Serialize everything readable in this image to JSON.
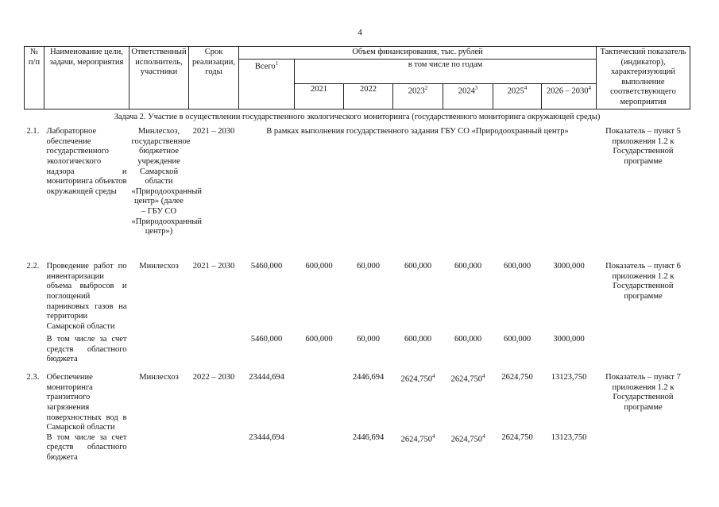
{
  "page_number": "4",
  "header": {
    "num": "№ п/п",
    "name": "Наименование цели, задачи, мероприятия",
    "executor": "Ответственный исполнитель, участники",
    "period": "Срок реализации, годы",
    "funding": "Объем финансирования, тыс. рублей",
    "total": {
      "label": "Всего",
      "note": "1"
    },
    "by_years": "в том числе по годам",
    "years": [
      {
        "label": "2021"
      },
      {
        "label": "2022"
      },
      {
        "label": "2023",
        "note": "2"
      },
      {
        "label": "2024",
        "note": "3"
      },
      {
        "label": "2025",
        "note": "4"
      },
      {
        "label": "2026 – 2030",
        "note": "4"
      }
    ],
    "indicator": "Тактический показатель (индикатор), характеризующий выполнение соответствующего мероприятия"
  },
  "task": "Задача 2. Участие в осуществлении государственного экологического мониторинга (государственного мониторинга окружающей среды)",
  "rows": [
    {
      "num": "2.1.",
      "name": "Лабораторное обеспечение государственного экологического надзора и мониторинга объектов окружающей среды",
      "executor": "Минлесхоз, государственное бюджетное учреждение Самарской области «Природоохранный центр» (далее – ГБУ СО «Природоохранный центр»)",
      "period": "2021 – 2030",
      "note": "В рамках выполнения государственного задания ГБУ СО «Природоохранный центр»",
      "indicator": "Показатель – пункт 5 приложения 1.2 к Государственной программе"
    },
    {
      "num": "2.2.",
      "name": "Проведение работ по инвентаризации объема выбросов и поглощений парниковых газов на территории Самарской области",
      "executor": "Минлесхоз",
      "period": "2021 – 2030",
      "cells": [
        {
          "value": "5460,000"
        },
        {
          "value": "600,000"
        },
        {
          "value": "60,000"
        },
        {
          "value": "600,000"
        },
        {
          "value": "600,000"
        },
        {
          "value": "600,000"
        },
        {
          "value": "3000,000"
        }
      ],
      "indicator": "Показатель – пункт 6 приложения 1.2 к Государственной программе"
    },
    {
      "name": "В том числе за счет средств областного бюджета",
      "cells": [
        {
          "value": "5460,000"
        },
        {
          "value": "600,000"
        },
        {
          "value": "60,000"
        },
        {
          "value": "600,000"
        },
        {
          "value": "600,000"
        },
        {
          "value": "600,000"
        },
        {
          "value": "3000,000"
        }
      ]
    },
    {
      "num": "2.3.",
      "name": "Обеспечение мониторинга транзитного загрязнения поверхностных вод в Самарской области",
      "executor": "Минлесхоз",
      "period": "2022 – 2030",
      "cells": [
        {
          "value": "23444,694"
        },
        null,
        {
          "value": "2446,694"
        },
        {
          "value": "2624,750",
          "note": "4"
        },
        {
          "value": "2624,750",
          "note": "4"
        },
        {
          "value": "2624,750"
        },
        {
          "value": "13123,750"
        }
      ],
      "indicator": "Показатель – пункт 7 приложения 1.2 к Государственной программе"
    },
    {
      "name": "В том числе за счет средств областного бюджета",
      "cells": [
        {
          "value": "23444,694"
        },
        null,
        {
          "value": "2446,694"
        },
        {
          "value": "2624,750",
          "note": "4"
        },
        {
          "value": "2624,750",
          "note": "4"
        },
        {
          "value": "2624,750"
        },
        {
          "value": "13123,750"
        }
      ]
    }
  ]
}
